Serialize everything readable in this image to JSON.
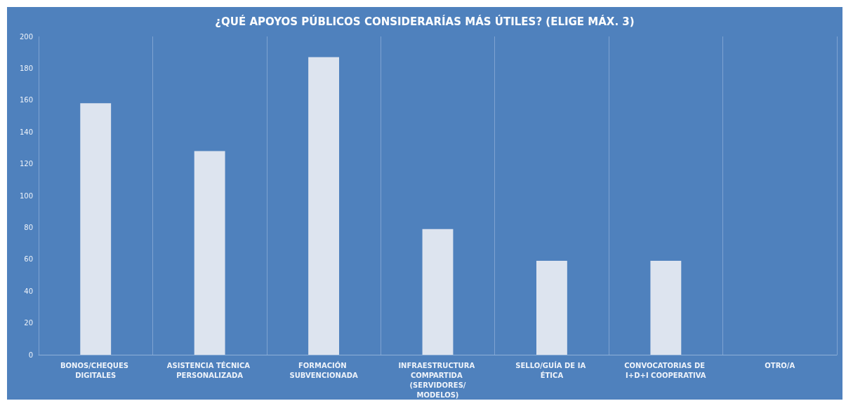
{
  "chart_data": {
    "type": "bar",
    "title": "¿QUÉ APOYOS PÚBLICOS CONSIDERARÍAS MÁS ÚTILES? (ELIGE MÁX. 3)",
    "categories": [
      "BONOS/CHEQUES DIGITALES",
      "ASISTENCIA TÉCNICA PERSONALIZADA",
      "FORMACIÓN SUBVENCIONADA",
      "INFRAESTRUCTURA COMPARTIDA (SERVIDORES/MODELOS)",
      "SELLO/GUÍA DE IA ÉTICA",
      "CONVOCATORIAS DE I+D+I COOPERATIVA",
      "OTRO/A"
    ],
    "values": [
      158,
      128,
      187,
      79,
      59,
      59,
      0
    ],
    "color": "#dde4ef",
    "ylim": [
      0,
      200
    ],
    "yticks": [
      0,
      20,
      40,
      60,
      80,
      100,
      120,
      140,
      160,
      180,
      200
    ],
    "grid": "x"
  }
}
